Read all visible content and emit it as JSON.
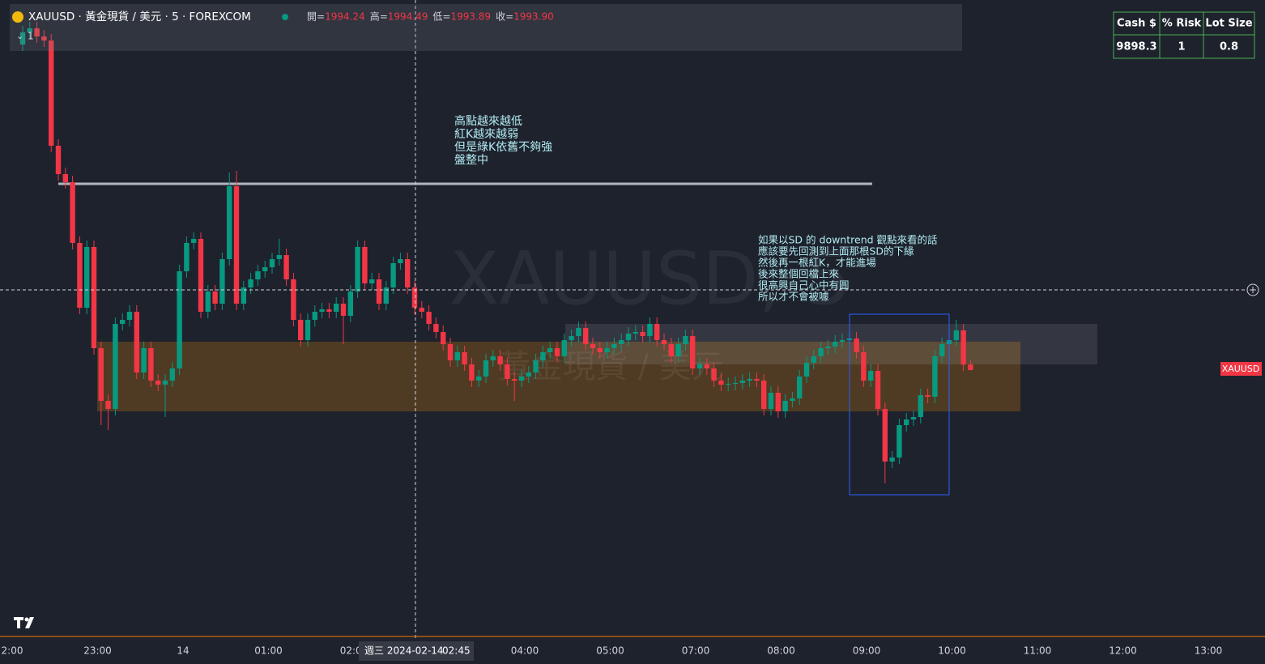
{
  "header": {
    "title": "XAUUSD · 黃金現貨 / 美元 · 5 · FOREXCOM",
    "ohlc": [
      {
        "key": "開=",
        "text": "1994.24"
      },
      {
        "key": "高=",
        "text": "1994.49"
      },
      {
        "key": "低=",
        "text": "1993.89"
      },
      {
        "key": "收=",
        "text": "1993.90"
      }
    ],
    "interval_count": "1"
  },
  "annotations": {
    "note1": [
      "高點越來越低",
      "紅K越來越弱",
      "但是綠K依舊不夠強",
      "盤整中"
    ],
    "note2": [
      "如果以SD 的 downtrend 觀點來看的話",
      "應該要先回測到上面那根SD的下緣",
      "然後再一根紅K，才能進場",
      "後來整個回檔上來",
      "很高興自己心中有圓",
      "所以才不會被噱"
    ]
  },
  "watermark": {
    "symbol": "XAUUSD, 5",
    "name": "黃金現貨 / 美元"
  },
  "price_tag": "XAUUSD",
  "table": {
    "header": [
      "Cash $",
      "% Risk",
      "Lot Size"
    ],
    "rows": [
      [
        "9898.3",
        "1",
        "0.8"
      ]
    ]
  },
  "crosshair": {
    "date": "週三 2024-02-14",
    "time": "02:45"
  },
  "chart_data": {
    "type": "candlestick",
    "x_labels": [
      "2:00",
      "23:00",
      "14",
      "01:00",
      "02:00",
      null,
      "04:00",
      "05:00",
      "07:00",
      "08:00",
      "09:00",
      "10:00",
      "11:00",
      "12:00",
      "13:00"
    ],
    "open": [
      2014,
      2014.75,
      2015,
      2014.5,
      2014.25,
      2007.75,
      2006,
      2005.5,
      2001.75,
      1997.75,
      2001.5,
      1995.25,
      1992,
      1991.5,
      1996.75,
      1997,
      1997.5,
      1993.75,
      1995.25,
      1993.25,
      1993,
      1993.25,
      1994,
      2000,
      2001.75,
      2002,
      1997.5,
      1998.75,
      1998,
      2000.75,
      2005.25,
      1998,
      1999,
      1999.5,
      2000,
      2000.25,
      2000.75,
      2001,
      1999.5,
      1997,
      1995.75,
      1997,
      1997.5,
      1997.65,
      1997.5,
      1998,
      1997.25,
      1998.75,
      2001.5,
      1999.25,
      1999.5,
      1998,
      1999,
      2000.5,
      2000.75,
      1999,
      1997.75,
      1997.5,
      1996.75,
      1996.25,
      1995.5,
      1994.5,
      1995,
      1994.25,
      1993.25,
      1993.5,
      1994.5,
      1994.75,
      1994.25,
      1993.35,
      1993.25,
      1993.5,
      1993.75,
      1994.5,
      1995,
      1995.25,
      1994.75,
      1995.75,
      1996,
      1996.5,
      1995.5,
      1995.25,
      1995,
      1995.25,
      1995.5,
      1995.75,
      1996.15,
      1996.25,
      1996,
      1996.75,
      1995.75,
      1995.5,
      1994.75,
      1995.5,
      1996,
      1994,
      1994.25,
      1994,
      1993.25,
      1993,
      1993.05,
      1993.1,
      1993.25,
      1993.35,
      1993.25,
      1991.5,
      1992.5,
      1991.35,
      1992,
      1992.15,
      1993.5,
      1994.35,
      1994.75,
      1995.25,
      1995.35,
      1995.65,
      1995.75,
      1995.85,
      1995,
      1993.25,
      1993.85,
      1991.5,
      1988.25,
      1988.5,
      1990.5,
      1990.85,
      1991,
      1992.35,
      1992.25,
      1994.75,
      1995.5,
      1995.75,
      1996.35,
      1994.24
    ],
    "high": [
      2015.15,
      2015.4,
      2015.4,
      2014.9,
      2014.65,
      2008.15,
      2006.4,
      2005.9,
      2002.15,
      2001.9,
      2001.9,
      1995.65,
      1992.4,
      1997.15,
      1997.4,
      1997.9,
      1997.9,
      1995.65,
      1995.65,
      1993.65,
      1993.65,
      1994.4,
      2000.4,
      2002.15,
      2002.4,
      2002.4,
      1999.15,
      1999.15,
      2001.15,
      2006.1,
      2006.2,
      1999.4,
      1999.9,
      2000.4,
      2000.65,
      2001.15,
      2002,
      2001.4,
      1999.9,
      1997.4,
      1997.4,
      1997.9,
      1998.05,
      1998.05,
      1998.4,
      1998.4,
      1999.15,
      2001.9,
      2001.9,
      1999.9,
      1999.9,
      1999.4,
      2000.9,
      2001.15,
      2001.15,
      1999.4,
      1998.15,
      1997.9,
      1997.15,
      1996.65,
      1995.9,
      1995.4,
      1995.4,
      1994.65,
      1993.9,
      1994.9,
      1995.15,
      1995.15,
      1994.65,
      1993.75,
      1993.9,
      1994.15,
      1994.9,
      1995.4,
      1995.65,
      1995.65,
      1996.15,
      1996.4,
      1996.9,
      1996.9,
      1995.9,
      1995.65,
      1995.65,
      1995.9,
      1996.15,
      1996.55,
      1996.65,
      1996.65,
      1997.15,
      1997.15,
      1996.15,
      1995.9,
      1995.9,
      1996.4,
      1996.4,
      1994.65,
      1994.65,
      1994.4,
      1993.65,
      1993.45,
      1993.5,
      1993.65,
      1993.75,
      1993.75,
      1993.65,
      1992.9,
      1992.9,
      1992.4,
      1992.55,
      1993.9,
      1994.75,
      1995.15,
      1995.65,
      1995.75,
      1996.05,
      1996.15,
      1996.25,
      1996.25,
      1995.4,
      1994.25,
      1994.25,
      1991.9,
      1988.9,
      1990.9,
      1991.25,
      1991.4,
      1992.75,
      1992.75,
      1995.15,
      1995.9,
      1996.15,
      1997,
      1996.75,
      1994.49
    ],
    "low": [
      2013.6,
      2014.35,
      2014.1,
      2013.85,
      2007.35,
      2005.6,
      2005.1,
      2001.35,
      1997.35,
      1997.35,
      1994.85,
      1990.5,
      1990.2,
      1991.1,
      1996.35,
      1996.6,
      1993.35,
      1993.35,
      1992.85,
      1992.6,
      1991,
      1992.85,
      1993.6,
      1999.6,
      2001.35,
      1997.1,
      1997.1,
      1997.6,
      1997.6,
      2000.35,
      1997.6,
      1997.6,
      1998.6,
      1999.1,
      1999.6,
      1999.85,
      2000.35,
      1999.1,
      1996.6,
      1995.35,
      1995.35,
      1996.6,
      1997.1,
      1997.1,
      1997.1,
      1995.5,
      1996.85,
      1998.35,
      1998.85,
      1998.85,
      1997.6,
      1997.6,
      1998.6,
      2000.1,
      1998.6,
      1997.35,
      1997.1,
      1996.35,
      1995.85,
      1995.1,
      1994.1,
      1994.1,
      1993.85,
      1992.85,
      1992.85,
      1993.1,
      1994.1,
      1993.85,
      1992.95,
      1992,
      1992.85,
      1993.1,
      1993.35,
      1994.1,
      1994.6,
      1994.35,
      1994.35,
      1995.35,
      1995.6,
      1995.1,
      1994.85,
      1994.6,
      1994.6,
      1994.85,
      1995.1,
      1995.35,
      1995.75,
      1995.6,
      1995.6,
      1995.35,
      1995.1,
      1994.35,
      1994.35,
      1995.1,
      1993.6,
      1993.6,
      1993.6,
      1992.85,
      1992.6,
      1992.6,
      1992.65,
      1992.7,
      1992.85,
      1992.85,
      1991.1,
      1991.1,
      1990.95,
      1990.95,
      1991.6,
      1991.75,
      1993.1,
      1993.95,
      1994.35,
      1994.85,
      1994.95,
      1995.25,
      1995.35,
      1994.6,
      1992.85,
      1992.85,
      1991.1,
      1986.9,
      1987.85,
      1988.1,
      1990.1,
      1990.45,
      1990.6,
      1991.85,
      1991.85,
      1994.35,
      1995.1,
      1995.35,
      1993.84,
      1993.89
    ],
    "close": [
      2014.75,
      2015,
      2014.5,
      2014.25,
      2007.75,
      2006,
      2005.5,
      2001.75,
      1997.75,
      2001.5,
      1995.25,
      1992,
      1991.5,
      1996.75,
      1997,
      1997.5,
      1993.75,
      1995.25,
      1993.25,
      1993,
      1993.25,
      1994,
      2000,
      2001.75,
      2002,
      1997.5,
      1998.75,
      1998,
      2000.75,
      2005.25,
      1998,
      1999,
      1999.5,
      2000,
      2000.25,
      2000.75,
      2001,
      1999.5,
      1997,
      1995.75,
      1997,
      1997.5,
      1997.65,
      1997.5,
      1998,
      1997.25,
      1998.75,
      2001.5,
      1999.25,
      1999.5,
      1998,
      1999,
      2000.5,
      2000.75,
      1999,
      1997.75,
      1997.5,
      1996.75,
      1996.25,
      1995.5,
      1994.5,
      1995,
      1994.25,
      1993.25,
      1993.5,
      1994.5,
      1994.75,
      1994.25,
      1993.35,
      1993.25,
      1993.5,
      1993.75,
      1994.5,
      1995,
      1995.25,
      1994.75,
      1995.75,
      1996,
      1996.5,
      1995.5,
      1995.25,
      1995,
      1995.25,
      1995.5,
      1995.75,
      1996.15,
      1996.25,
      1996,
      1996.75,
      1995.75,
      1995.5,
      1994.75,
      1995.5,
      1996,
      1994,
      1994.25,
      1994,
      1993.25,
      1993,
      1993.05,
      1993.1,
      1993.25,
      1993.35,
      1993.25,
      1991.5,
      1992.5,
      1991.35,
      1992,
      1992.15,
      1993.5,
      1994.35,
      1994.75,
      1995.25,
      1995.35,
      1995.65,
      1995.75,
      1995.85,
      1995,
      1993.25,
      1993.85,
      1991.5,
      1988.25,
      1988.5,
      1990.5,
      1990.85,
      1991,
      1992.35,
      1992.25,
      1994.75,
      1995.5,
      1995.75,
      1996.35,
      1994.24,
      1993.9
    ],
    "ylim": [
      1986,
      2016
    ],
    "up_color": "#089981",
    "down_color": "#f23645"
  }
}
